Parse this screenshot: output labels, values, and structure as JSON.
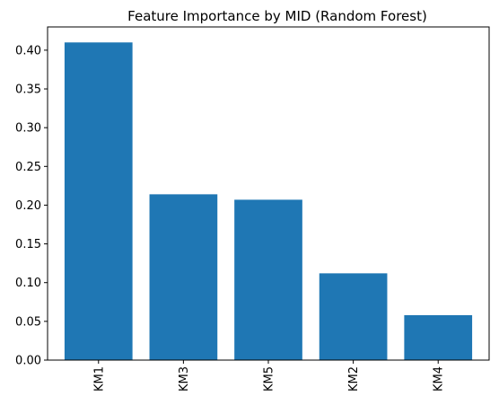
{
  "chart_data": {
    "type": "bar",
    "title": "Feature Importance by MID (Random Forest)",
    "xlabel": "",
    "ylabel": "",
    "categories": [
      "KM1",
      "KM3",
      "KM5",
      "KM2",
      "KM4"
    ],
    "values": [
      0.41,
      0.214,
      0.207,
      0.112,
      0.058
    ],
    "ylim": [
      0,
      0.43
    ],
    "yticks": [
      "0.00",
      "0.05",
      "0.10",
      "0.15",
      "0.20",
      "0.25",
      "0.30",
      "0.35",
      "0.40"
    ],
    "grid": false,
    "bar_color": "#1f77b4",
    "x_tick_rotation": "vertical"
  }
}
